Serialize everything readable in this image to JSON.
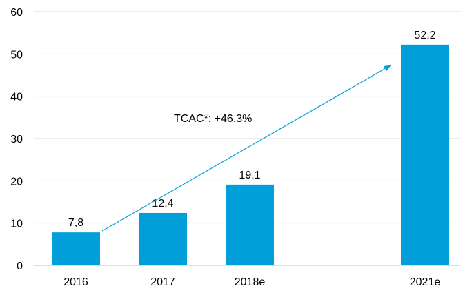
{
  "chart_data": {
    "type": "bar",
    "categories": [
      "2016",
      "2017",
      "2018e",
      "2021e"
    ],
    "values": [
      7.8,
      12.4,
      19.1,
      52.2
    ],
    "value_labels": [
      "7,8",
      "12,4",
      "19,1",
      "52,2"
    ],
    "y_ticks": [
      "0",
      "10",
      "20",
      "30",
      "40",
      "50",
      "60"
    ],
    "ylim": [
      0,
      60
    ],
    "grid": true,
    "legend": "none",
    "annotation": {
      "text": "TCAC*: +46.3%",
      "arrow_from_category": "2016",
      "arrow_to_category": "2021e"
    },
    "colors": {
      "bar": "#009fda",
      "arrow": "#009fda",
      "grid": "#d9d9d9"
    }
  }
}
